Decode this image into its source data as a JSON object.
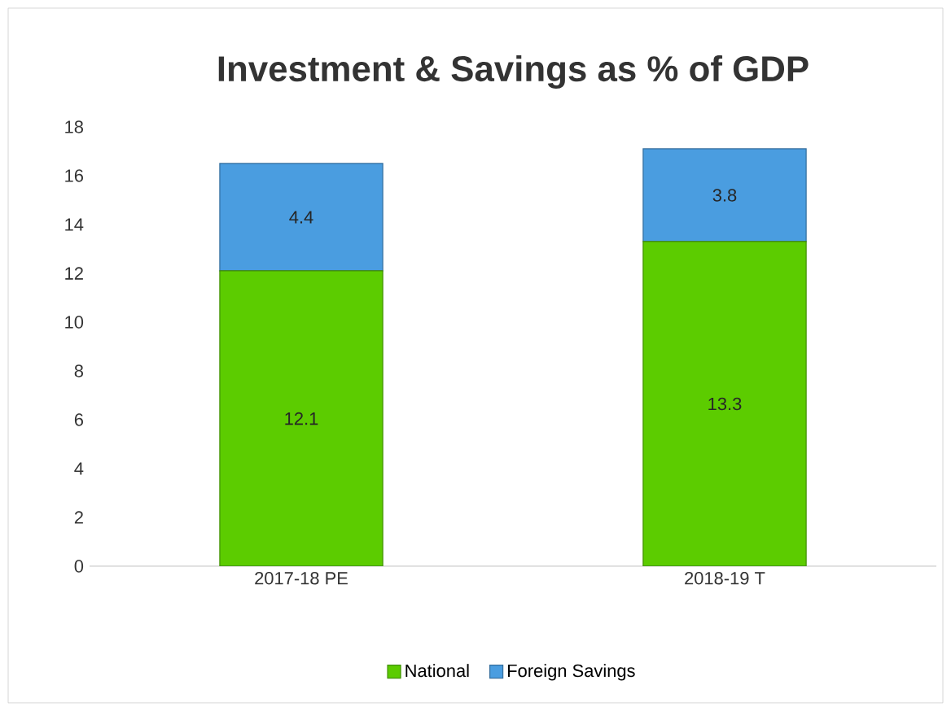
{
  "chart_data": {
    "type": "bar",
    "title": "Investment & Savings as % of GDP",
    "stacked": true,
    "data_labels": true,
    "legend": "bottom",
    "categories": [
      "2017-18 PE",
      "2018-19 T"
    ],
    "series": [
      {
        "name": "National",
        "color": "#5ccc00",
        "values": [
          12.1,
          13.3
        ]
      },
      {
        "name": "Foreign Savings",
        "color": "#4a9de0",
        "values": [
          4.4,
          3.8
        ]
      }
    ],
    "ylim": [
      0,
      18
    ],
    "yticks": [
      0,
      2,
      4,
      6,
      8,
      10,
      12,
      14,
      16,
      18
    ]
  }
}
